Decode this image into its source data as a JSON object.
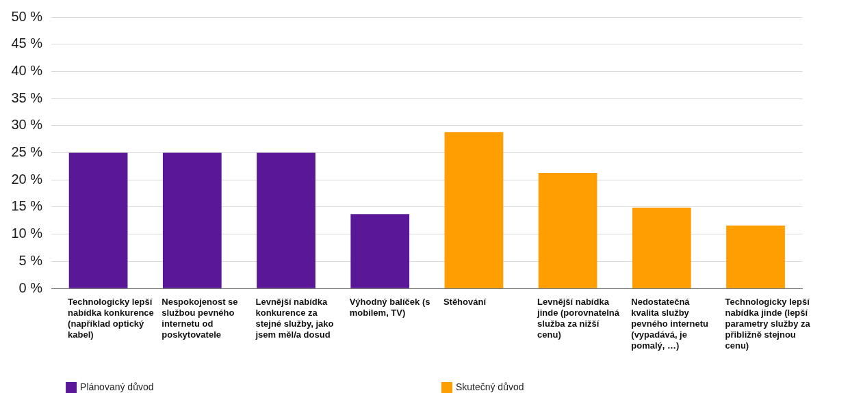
{
  "chart_data": {
    "type": "bar",
    "categories": [
      "Technologicky lepší nabídka konkurence (například optický kabel)",
      "Nespokojenost se službou pevného internetu od poskytovatele",
      "Levnější nabídka konkurence za stejné služby, jako jsem měl/a dosud",
      "Výhodný balíček (s mobilem, TV)",
      "Stěhování",
      "Levnější nabídka jinde (porovnatelná služba za nižší cenu)",
      "Nedostatečná kvalita služby pevného internetu (vypadává, je pomalý, …)",
      "Technologicky lepší nabídka jinde (lepší parametry služby za přibližně stejnou cenu)"
    ],
    "series": [
      {
        "name": "Plánovaný důvod",
        "color": "#5a1899",
        "values": [
          25,
          25,
          25,
          13.7,
          null,
          null,
          null,
          null
        ]
      },
      {
        "name": "Skutečný důvod",
        "color": "#ff9e00",
        "values": [
          null,
          null,
          null,
          null,
          28.8,
          21.3,
          14.9,
          11.6
        ]
      }
    ],
    "ylim": [
      0,
      50
    ],
    "yticks": [
      {
        "value": 0,
        "label": "0 %"
      },
      {
        "value": 5,
        "label": "5 %"
      },
      {
        "value": 10,
        "label": "10 %"
      },
      {
        "value": 15,
        "label": "15 %"
      },
      {
        "value": 20,
        "label": "20 %"
      },
      {
        "value": 25,
        "label": "25 %"
      },
      {
        "value": 30,
        "label": "30 %"
      },
      {
        "value": 35,
        "label": "35 %"
      },
      {
        "value": 40,
        "label": "40 %"
      },
      {
        "value": 45,
        "label": "45 %"
      },
      {
        "value": 50,
        "label": "50 %"
      }
    ],
    "grid": "y",
    "legend": "bottom"
  }
}
